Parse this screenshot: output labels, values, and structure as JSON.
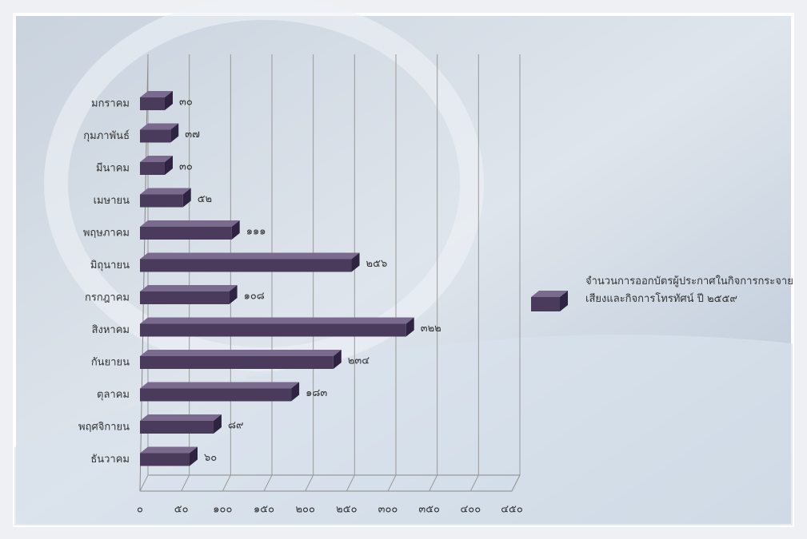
{
  "chart_data": {
    "type": "bar",
    "orientation": "horizontal",
    "categories": [
      "มกราคม",
      "กุมภาพันธ์",
      "มีนาคม",
      "เมษายน",
      "พฤษภาคม",
      "มิถุนายน",
      "กรกฎาคม",
      "สิงหาคม",
      "กันยายน",
      "ตุลาคม",
      "พฤศจิกายน",
      "ธันวาคม"
    ],
    "series": [
      {
        "name": "จำนวนการออกบัตรผู้ประกาศในกิจการกระจายเสียงและกิจการโทรทัศน์ ปี ๒๕๕๙",
        "color": "#4a3a5c",
        "values": [
          30,
          37,
          30,
          52,
          111,
          256,
          108,
          322,
          234,
          183,
          89,
          60
        ],
        "value_labels": [
          "๓๐",
          "๓๗",
          "๓๐",
          "๕๒",
          "๑๑๑",
          "๒๕๖",
          "๑๐๘",
          "๓๒๒",
          "๒๓๔",
          "๑๘๓",
          "๘๙",
          "๖๐"
        ]
      }
    ],
    "xlim": [
      0,
      450
    ],
    "xticks": [
      {
        "value": 0,
        "label": "๐"
      },
      {
        "value": 50,
        "label": "๕๐"
      },
      {
        "value": 100,
        "label": "๑๐๐"
      },
      {
        "value": 150,
        "label": "๑๕๐"
      },
      {
        "value": 200,
        "label": "๒๐๐"
      },
      {
        "value": 250,
        "label": "๒๕๐"
      },
      {
        "value": 300,
        "label": "๓๐๐"
      },
      {
        "value": 350,
        "label": "๓๕๐"
      },
      {
        "value": 400,
        "label": "๔๐๐"
      },
      {
        "value": 450,
        "label": "๔๕๐"
      }
    ],
    "grid": true,
    "legend": "right"
  }
}
